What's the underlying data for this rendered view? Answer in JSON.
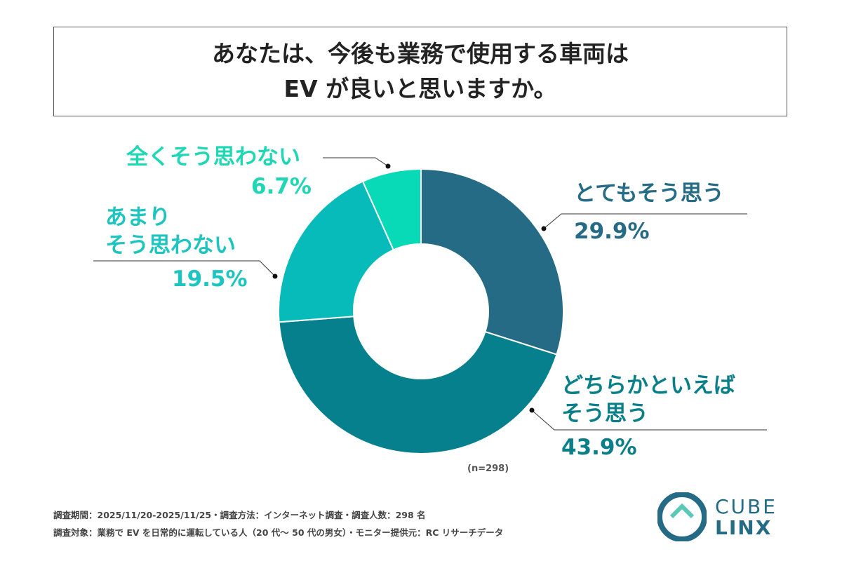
{
  "chart_data": {
    "type": "pie",
    "title": [
      "あなたは、今後も業務で使用する車両は",
      "EV が良いと思いますか。"
    ],
    "donut": true,
    "slices": [
      {
        "label": "とてもそう思う",
        "value": 29.9,
        "display": "29.9%",
        "color": "#256b85",
        "label_color": "#256b85"
      },
      {
        "label": "どちらかといえば\nそう思う",
        "value": 43.9,
        "display": "43.9%",
        "color": "#06808c",
        "label_color": "#0a7f8a"
      },
      {
        "label": "あまり\nそう思わない",
        "value": 19.5,
        "display": "19.5%",
        "color": "#08bbbb",
        "label_color": "#1ec4c0"
      },
      {
        "label": "全くそう思わない",
        "value": 6.7,
        "display": "6.7%",
        "color": "#08d9b6",
        "label_color": "#1fd6b5"
      }
    ],
    "n_label": "(n=298)"
  },
  "footer": {
    "line1": "調査期間：2025/11/20-2025/11/25・調査方法：インターネット調査・調査人数：298 名",
    "line2": "調査対象：業務で EV を日常的に運転している人（20 代～ 50 代の男女）・モニター提供元：RC リサーチデータ"
  },
  "logo": {
    "line1": "CUBE",
    "line2": "LINX"
  }
}
